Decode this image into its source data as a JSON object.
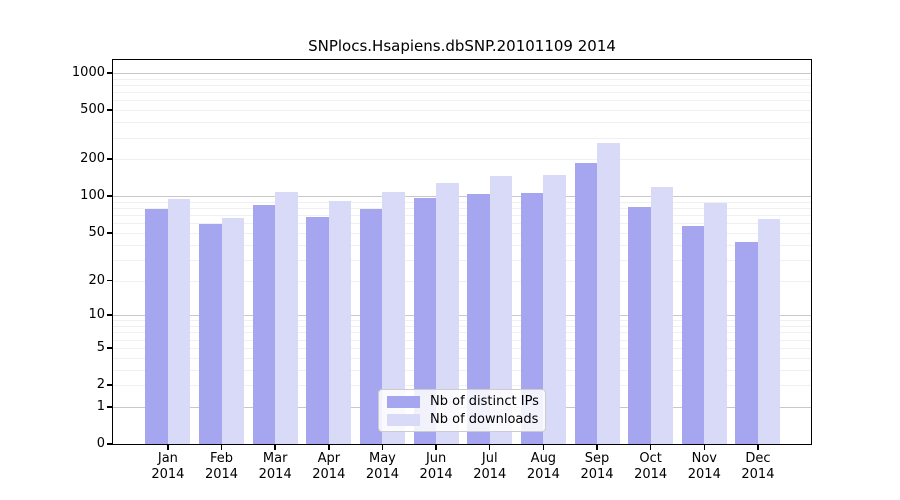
{
  "title": "SNPlocs.Hsapiens.dbSNP.20101109 2014",
  "colors": {
    "ips_bar": "#a5a5f0",
    "downloads_bar": "#d9d9f8",
    "major_grid": "#c8c8c8",
    "minor_grid": "#f0f0f0",
    "axis": "#000000",
    "legend_border": "#cccccc"
  },
  "legend": {
    "items": [
      {
        "label": "Nb of distinct IPs",
        "color_key": "ips_bar"
      },
      {
        "label": "Nb of downloads",
        "color_key": "downloads_bar"
      }
    ]
  },
  "x_axis": {
    "months": [
      "Jan",
      "Feb",
      "Mar",
      "Apr",
      "May",
      "Jun",
      "Jul",
      "Aug",
      "Sep",
      "Oct",
      "Nov",
      "Dec"
    ],
    "year": "2014"
  },
  "y_axis": {
    "ticks": [
      0,
      1,
      2,
      5,
      10,
      20,
      50,
      100,
      200,
      500,
      1000
    ]
  },
  "chart_data": {
    "type": "bar",
    "title": "SNPlocs.Hsapiens.dbSNP.20101109 2014",
    "categories": [
      "Jan 2014",
      "Feb 2014",
      "Mar 2014",
      "Apr 2014",
      "May 2014",
      "Jun 2014",
      "Jul 2014",
      "Aug 2014",
      "Sep 2014",
      "Oct 2014",
      "Nov 2014",
      "Dec 2014"
    ],
    "series": [
      {
        "name": "Nb of distinct IPs",
        "values": [
          78,
          59,
          84,
          67,
          79,
          97,
          105,
          106,
          188,
          82,
          57,
          42
        ]
      },
      {
        "name": "Nb of downloads",
        "values": [
          94,
          66,
          108,
          92,
          108,
          127,
          147,
          150,
          270,
          118,
          88,
          65
        ]
      }
    ],
    "xlabel": "",
    "ylabel": "",
    "y_scale": "log10(1+v)",
    "y_ticks": [
      0,
      1,
      2,
      5,
      10,
      20,
      50,
      100,
      200,
      500,
      1000
    ],
    "ylim": [
      0,
      1274
    ],
    "grid": "horizontal, log minor + decade major",
    "legend_position": "bottom-center"
  }
}
